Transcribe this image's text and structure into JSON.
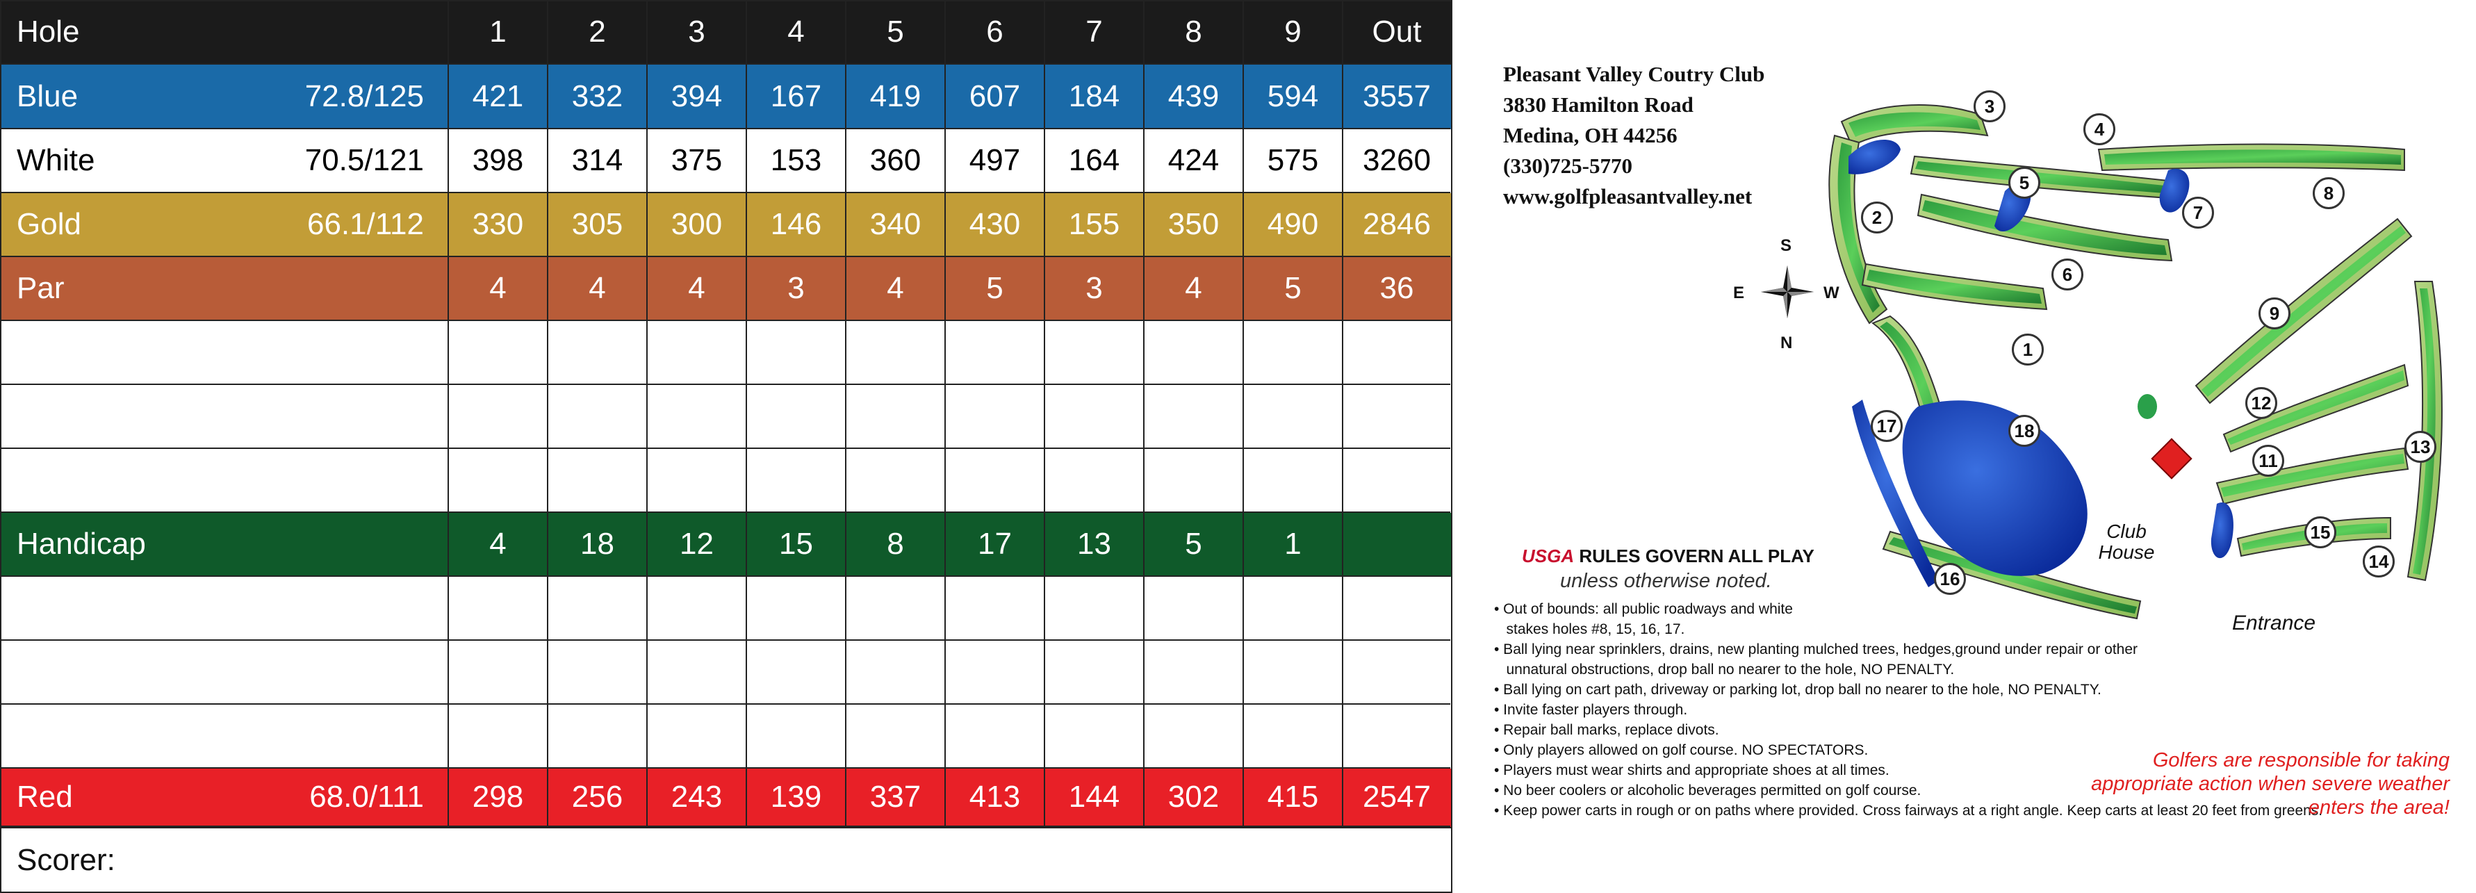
{
  "scorecard": {
    "header": {
      "label": "Hole",
      "holes": [
        "1",
        "2",
        "3",
        "4",
        "5",
        "6",
        "7",
        "8",
        "9"
      ],
      "out": "Out"
    },
    "tees": [
      {
        "key": "blue",
        "label": "Blue",
        "rating": "72.8/125",
        "values": [
          "421",
          "332",
          "394",
          "167",
          "419",
          "607",
          "184",
          "439",
          "594"
        ],
        "out": "3557",
        "color": "#1a6aa8"
      },
      {
        "key": "white",
        "label": "White",
        "rating": "70.5/121",
        "values": [
          "398",
          "314",
          "375",
          "153",
          "360",
          "497",
          "164",
          "424",
          "575"
        ],
        "out": "3260",
        "color": "#ffffff"
      },
      {
        "key": "gold",
        "label": "Gold",
        "rating": "66.1/112",
        "values": [
          "330",
          "305",
          "300",
          "146",
          "340",
          "430",
          "155",
          "350",
          "490"
        ],
        "out": "2846",
        "color": "#c29d37"
      }
    ],
    "par": {
      "label": "Par",
      "values": [
        "4",
        "4",
        "4",
        "3",
        "4",
        "5",
        "3",
        "4",
        "5"
      ],
      "out": "36",
      "color": "#b85c38"
    },
    "handicap": {
      "label": "Handicap",
      "values": [
        "4",
        "18",
        "12",
        "15",
        "8",
        "17",
        "13",
        "5",
        "1"
      ],
      "out": "",
      "color": "#0f5a2a"
    },
    "red": {
      "label": "Red",
      "rating": "68.0/111",
      "values": [
        "298",
        "256",
        "243",
        "139",
        "337",
        "413",
        "144",
        "302",
        "415"
      ],
      "out": "2547",
      "color": "#e82027"
    },
    "scorer_label": "Scorer:",
    "header_color": "#1b1b1b"
  },
  "club": {
    "name": "Pleasant Valley Coutry Club",
    "address": "3830 Hamilton Road",
    "city": "Medina, OH 44256",
    "phone": "(330)725-5770",
    "website": "www.golfpleasantvalley.net"
  },
  "map": {
    "compass": {
      "s": "S",
      "e": "E",
      "w": "W",
      "n": "N"
    },
    "clubhouse": "Club House",
    "entrance": "Entrance",
    "hole_numbers": [
      "1",
      "2",
      "3",
      "4",
      "5",
      "6",
      "7",
      "8",
      "9",
      "11",
      "12",
      "13",
      "14",
      "15",
      "16",
      "17",
      "18"
    ]
  },
  "rules": {
    "usga": "USGA",
    "title": " RULES GOVERN ALL PLAY",
    "subtitle": "unless otherwise noted.",
    "items": [
      "• Out of bounds: all public roadways and white",
      "   stakes holes #8, 15, 16, 17.",
      "• Ball lying near sprinklers, drains, new planting mulched trees, hedges,ground under repair or other",
      "   unnatural obstructions, drop ball no nearer to the hole, NO PENALTY.",
      "• Ball lying on cart path, driveway or parking lot, drop ball no nearer to the hole, NO PENALTY.",
      "• Invite faster players through.",
      "• Repair ball marks, replace divots.",
      "• Only players allowed on golf course. NO SPECTATORS.",
      "• Players must wear shirts and appropriate shoes at all times.",
      "• No beer coolers or alcoholic beverages permitted on golf course.",
      "• Keep power carts in rough or on paths where provided. Cross fairways at a right angle. Keep carts at least 20 feet from greens."
    ],
    "warning": "Golfers are  responsible for taking appropriate action when severe weather enters the area!"
  }
}
